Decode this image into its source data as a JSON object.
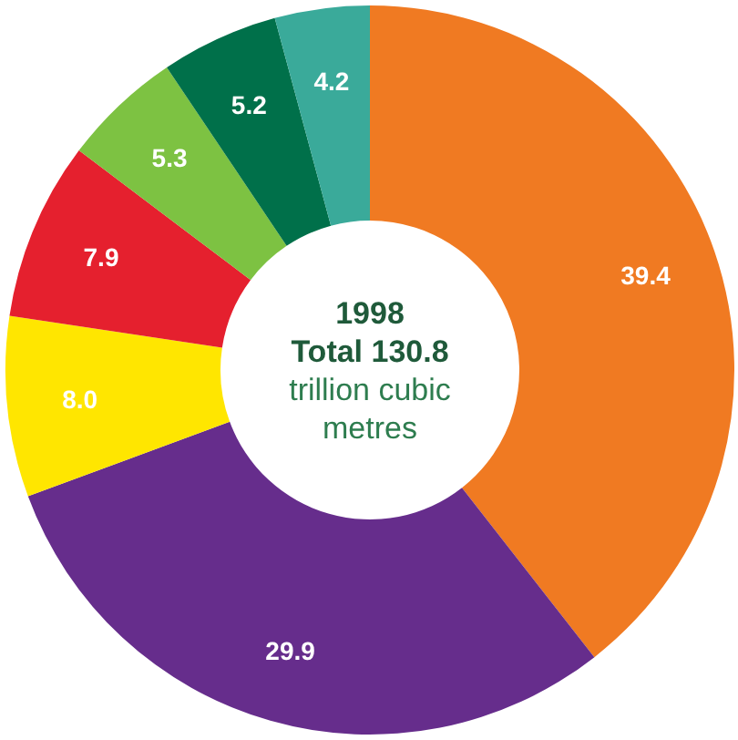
{
  "chart_data": {
    "type": "donut",
    "categories": [
      null,
      null,
      null,
      null,
      null,
      null,
      null
    ],
    "values": [
      39.4,
      29.9,
      8.0,
      7.9,
      5.3,
      5.2,
      4.2
    ],
    "colors": [
      "#f07a22",
      "#662d8c",
      "#ffe600",
      "#e5202e",
      "#7dc242",
      "#00704a",
      "#3aaa9a"
    ],
    "value_labels": [
      "39.4",
      "29.9",
      "8.0",
      "7.9",
      "5.3",
      "5.2",
      "4.2"
    ],
    "annotations": [
      "1998",
      "Total 130.8",
      "trillion cubic metres"
    ]
  }
}
